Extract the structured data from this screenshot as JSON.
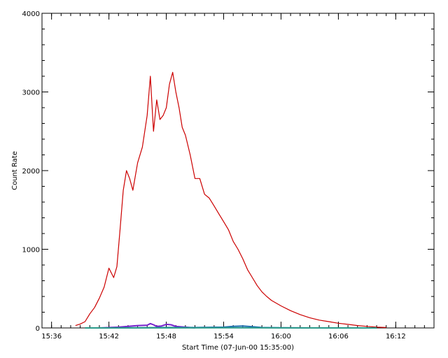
{
  "chart_data": {
    "type": "line",
    "xlabel": "Start Time (07-Jun-00 15:35:00)",
    "ylabel": "Count Rate",
    "xlim": [
      "15:35:00",
      "16:16:00"
    ],
    "ylim": [
      0,
      4000
    ],
    "x_ticks": [
      "15:36",
      "15:42",
      "15:48",
      "15:54",
      "16:00",
      "16:06",
      "16:12"
    ],
    "y_ticks": [
      0,
      1000,
      2000,
      3000,
      4000
    ],
    "grid": false,
    "series": [
      {
        "color": "#cc0000",
        "x": [
          "15:38:30",
          "15:39:00",
          "15:39:30",
          "15:40:00",
          "15:40:30",
          "15:41:00",
          "15:41:30",
          "15:42:00",
          "15:42:30",
          "15:42:50",
          "15:43:10",
          "15:43:30",
          "15:43:50",
          "15:44:10",
          "15:44:30",
          "15:45:00",
          "15:45:30",
          "15:46:00",
          "15:46:20",
          "15:46:40",
          "15:47:00",
          "15:47:20",
          "15:47:40",
          "15:48:00",
          "15:48:20",
          "15:48:40",
          "15:49:00",
          "15:49:20",
          "15:49:40",
          "15:50:00",
          "15:50:30",
          "15:51:00",
          "15:51:30",
          "15:52:00",
          "15:52:30",
          "15:53:00",
          "15:53:30",
          "15:54:00",
          "15:54:30",
          "15:55:00",
          "15:55:30",
          "15:56:00",
          "15:56:30",
          "15:57:00",
          "15:57:30",
          "15:58:00",
          "15:58:30",
          "15:59:00",
          "16:00:00",
          "16:01:00",
          "16:02:00",
          "16:03:00",
          "16:04:00",
          "16:05:00",
          "16:06:00",
          "16:07:00",
          "16:08:00",
          "16:09:00",
          "16:10:00",
          "16:11:00"
        ],
        "y": [
          30,
          50,
          80,
          180,
          260,
          380,
          520,
          760,
          640,
          780,
          1250,
          1750,
          2000,
          1900,
          1750,
          2100,
          2300,
          2700,
          3200,
          2500,
          2900,
          2650,
          2700,
          2800,
          3100,
          3250,
          3000,
          2800,
          2550,
          2450,
          2200,
          1900,
          1900,
          1700,
          1650,
          1550,
          1450,
          1350,
          1250,
          1100,
          1000,
          880,
          740,
          640,
          540,
          460,
          400,
          350,
          280,
          220,
          170,
          130,
          100,
          80,
          60,
          45,
          30,
          20,
          10,
          5
        ]
      },
      {
        "color": "#7722cc",
        "x": [
          "15:39:30",
          "15:41:00",
          "15:42:00",
          "15:43:00",
          "15:44:00",
          "15:45:00",
          "15:46:00",
          "15:46:20",
          "15:46:40",
          "15:47:00",
          "15:47:30",
          "15:48:00",
          "15:48:30",
          "15:49:00",
          "15:50:00",
          "15:51:00"
        ],
        "y": [
          0,
          0,
          5,
          10,
          20,
          30,
          35,
          55,
          40,
          20,
          25,
          45,
          40,
          20,
          10,
          0
        ]
      },
      {
        "color": "#1e6fb0",
        "x": [
          "15:39:30",
          "15:42:00",
          "15:45:00",
          "15:48:00",
          "15:51:00",
          "15:54:00",
          "15:55:00",
          "15:56:00",
          "15:57:00",
          "15:58:00",
          "16:00:00",
          "16:03:00"
        ],
        "y": [
          0,
          0,
          2,
          5,
          5,
          10,
          20,
          25,
          15,
          5,
          2,
          0
        ]
      },
      {
        "color": "#2a9a8a",
        "x": [
          "15:39:30",
          "15:45:00",
          "15:50:00",
          "15:55:00",
          "16:00:00",
          "16:05:00",
          "16:10:00"
        ],
        "y": [
          0,
          1,
          1,
          2,
          1,
          0,
          0
        ]
      }
    ]
  }
}
